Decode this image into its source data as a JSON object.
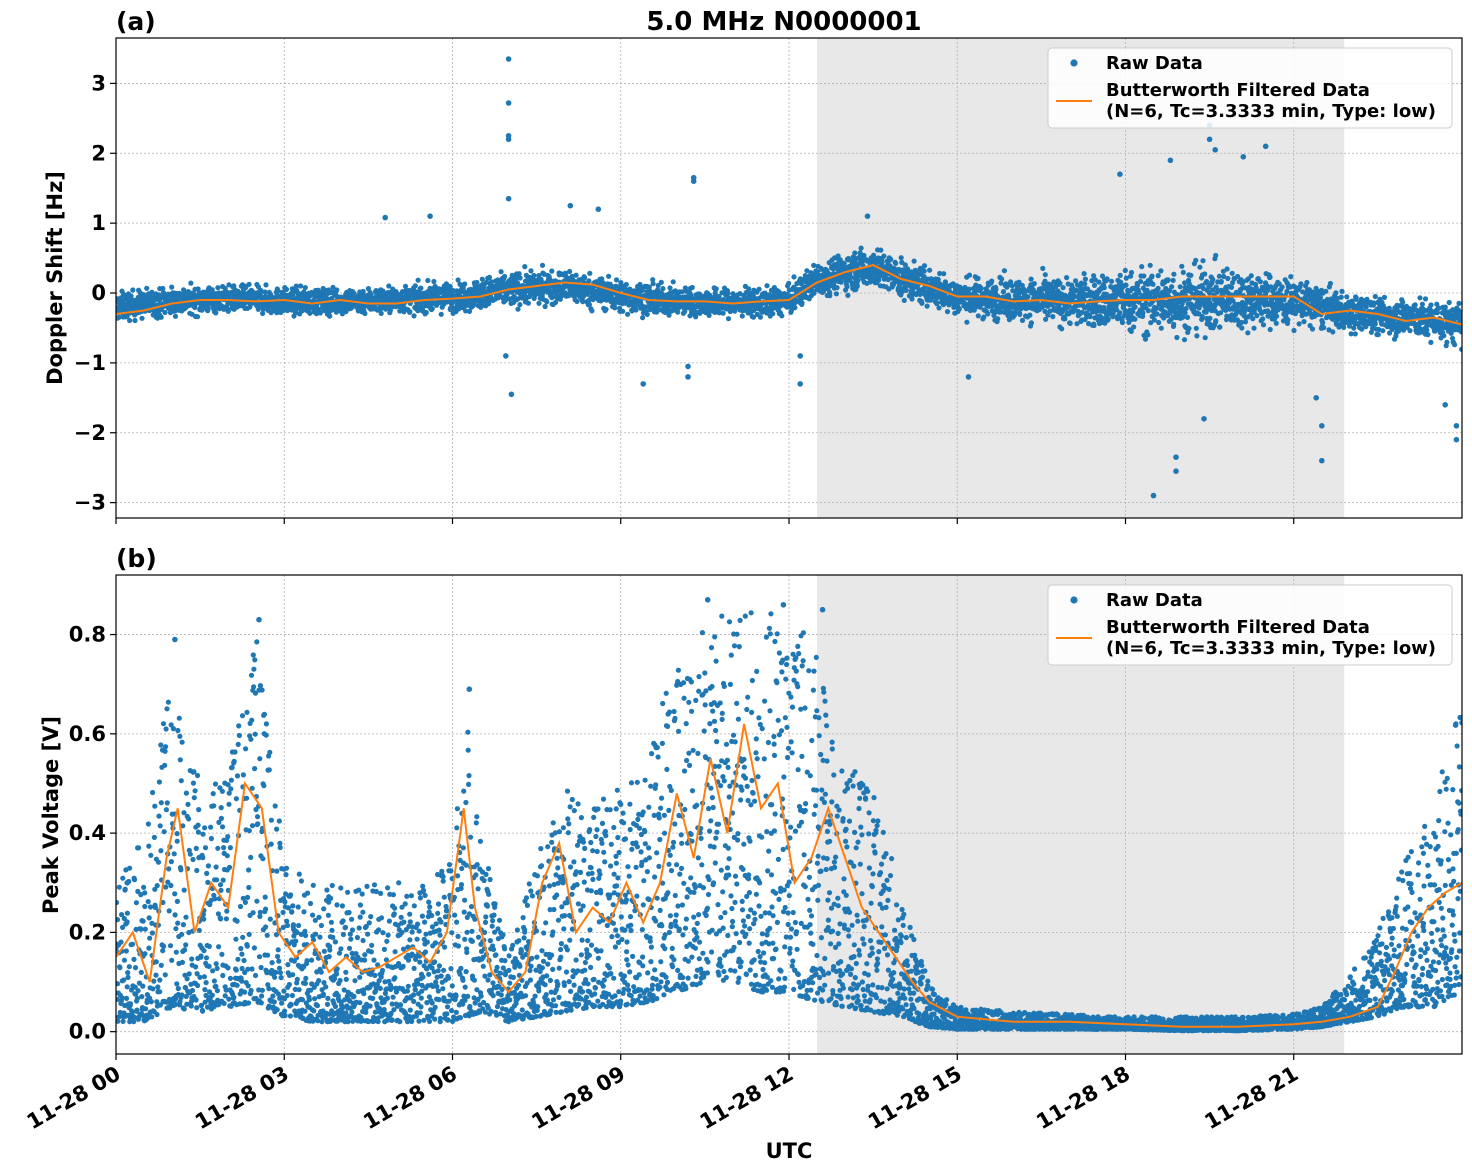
{
  "title": "5.0 MHz N0000001",
  "xlabel": "UTC",
  "x_tick_labels": [
    "11-28 00",
    "11-28 03",
    "11-28 06",
    "11-28 09",
    "11-28 12",
    "11-28 15",
    "11-28 18",
    "11-28 21"
  ],
  "legend": {
    "raw_label": "Raw Data",
    "filtered_label_line1": "Butterworth Filtered Data",
    "filtered_label_line2": "(N=6, Tc=3.3333 min, Type: low)"
  },
  "colors": {
    "raw": "#1f77b4",
    "filtered": "#ff7f0e",
    "shade": "#e8e8e8",
    "grid": "#b0b0b0"
  },
  "shaded_region_hours": [
    12.5,
    21.9
  ],
  "chart_data": [
    {
      "type": "scatter",
      "panel": "(a)",
      "ylabel": "Doppler Shift [Hz]",
      "xlim": [
        0,
        24
      ],
      "ylim": [
        -3.22,
        3.65
      ],
      "x_ticks": [
        0,
        3,
        6,
        9,
        12,
        15,
        18,
        21
      ],
      "y_ticks": [
        -3,
        -2,
        -1,
        0,
        1,
        2,
        3
      ],
      "y_tick_labels": [
        "−3",
        "−2",
        "−1",
        "0",
        "1",
        "2",
        "3"
      ],
      "grid": true,
      "legend_position": "top-right",
      "series": [
        {
          "name": "Raw Data",
          "style": "points",
          "band_x": [
            0,
            1,
            2,
            3,
            4,
            5,
            6,
            7,
            8,
            9,
            10,
            11,
            12,
            12.5,
            13,
            13.5,
            14,
            15,
            16,
            17,
            18,
            19,
            20,
            21,
            22,
            23,
            24
          ],
          "band_center": [
            -0.2,
            -0.12,
            -0.08,
            -0.12,
            -0.12,
            -0.1,
            -0.06,
            0.05,
            0.1,
            -0.05,
            -0.12,
            -0.15,
            -0.12,
            0.2,
            0.3,
            0.38,
            0.2,
            -0.05,
            -0.1,
            -0.12,
            -0.12,
            -0.1,
            -0.08,
            -0.12,
            -0.3,
            -0.35,
            -0.45
          ],
          "band_half_width": [
            0.3,
            0.3,
            0.28,
            0.28,
            0.28,
            0.28,
            0.3,
            0.35,
            0.35,
            0.35,
            0.3,
            0.3,
            0.3,
            0.35,
            0.4,
            0.42,
            0.4,
            0.4,
            0.45,
            0.5,
            0.65,
            0.75,
            0.65,
            0.5,
            0.4,
            0.4,
            0.45
          ],
          "outliers": [
            [
              7.0,
              3.35
            ],
            [
              7.0,
              2.72
            ],
            [
              7.0,
              2.25
            ],
            [
              7.0,
              2.2
            ],
            [
              7.0,
              1.35
            ],
            [
              7.05,
              -1.45
            ],
            [
              6.95,
              -0.9
            ],
            [
              8.1,
              1.25
            ],
            [
              8.6,
              1.2
            ],
            [
              9.4,
              -1.3
            ],
            [
              10.3,
              1.65
            ],
            [
              10.3,
              1.6
            ],
            [
              10.2,
              -1.2
            ],
            [
              10.2,
              -1.05
            ],
            [
              4.8,
              1.08
            ],
            [
              5.6,
              1.1
            ],
            [
              12.2,
              -1.3
            ],
            [
              12.2,
              -0.9
            ],
            [
              13.4,
              1.1
            ],
            [
              17.9,
              1.7
            ],
            [
              18.5,
              -2.9
            ],
            [
              18.9,
              -2.55
            ],
            [
              18.9,
              -2.35
            ],
            [
              19.4,
              -1.8
            ],
            [
              19.5,
              2.4
            ],
            [
              19.5,
              2.2
            ],
            [
              19.6,
              2.05
            ],
            [
              18.8,
              1.9
            ],
            [
              20.1,
              1.95
            ],
            [
              20.5,
              2.1
            ],
            [
              21.5,
              -2.4
            ],
            [
              21.5,
              -1.9
            ],
            [
              21.4,
              -1.5
            ],
            [
              23.7,
              -1.6
            ],
            [
              23.9,
              -2.1
            ],
            [
              23.9,
              -1.9
            ],
            [
              15.2,
              -1.2
            ]
          ]
        },
        {
          "name": "Butterworth Filtered Data (N=6, Tc=3.3333 min, Type: low)",
          "style": "line",
          "x": [
            0,
            0.5,
            1,
            1.5,
            2,
            2.5,
            3,
            3.5,
            4,
            4.5,
            5,
            5.5,
            6,
            6.5,
            7,
            7.5,
            8,
            8.5,
            9,
            9.5,
            10,
            10.5,
            11,
            11.5,
            12,
            12.5,
            13,
            13.5,
            14,
            14.5,
            15,
            15.5,
            16,
            16.5,
            17,
            17.5,
            18,
            18.5,
            19,
            19.5,
            20,
            20.5,
            21,
            21.5,
            22,
            22.5,
            23,
            23.5,
            24
          ],
          "y": [
            -0.3,
            -0.25,
            -0.15,
            -0.1,
            -0.1,
            -0.12,
            -0.1,
            -0.15,
            -0.1,
            -0.15,
            -0.15,
            -0.1,
            -0.08,
            -0.05,
            0.05,
            0.1,
            0.15,
            0.12,
            0.0,
            -0.1,
            -0.12,
            -0.12,
            -0.15,
            -0.12,
            -0.1,
            0.15,
            0.3,
            0.4,
            0.2,
            0.1,
            -0.05,
            -0.05,
            -0.12,
            -0.1,
            -0.15,
            -0.12,
            -0.1,
            -0.1,
            -0.05,
            -0.05,
            -0.05,
            -0.05,
            -0.05,
            -0.3,
            -0.25,
            -0.3,
            -0.4,
            -0.35,
            -0.45
          ]
        }
      ]
    },
    {
      "type": "scatter",
      "panel": "(b)",
      "ylabel": "Peak Voltage [V]",
      "xlim": [
        0,
        24
      ],
      "ylim": [
        -0.045,
        0.92
      ],
      "x_ticks": [
        0,
        3,
        6,
        9,
        12,
        15,
        18,
        21
      ],
      "y_ticks": [
        0.0,
        0.2,
        0.4,
        0.6,
        0.8
      ],
      "y_tick_labels": [
        "0.0",
        "0.2",
        "0.4",
        "0.6",
        "0.8"
      ],
      "grid": true,
      "legend_position": "top-right",
      "series": [
        {
          "name": "Raw Data",
          "style": "points",
          "band_x": [
            0,
            0.5,
            1,
            1.5,
            2,
            2.5,
            3,
            3.5,
            4,
            4.5,
            5,
            5.5,
            6,
            6.25,
            6.5,
            7,
            7.5,
            8,
            8.5,
            9,
            9.5,
            10,
            10.5,
            11,
            11.5,
            12,
            12.5,
            13,
            13.5,
            14,
            14.5,
            15,
            16,
            17,
            18,
            19,
            20,
            21,
            21.5,
            22,
            22.5,
            23,
            23.5,
            24
          ],
          "band_low": [
            0.02,
            0.02,
            0.05,
            0.04,
            0.05,
            0.06,
            0.03,
            0.02,
            0.02,
            0.02,
            0.02,
            0.02,
            0.02,
            0.03,
            0.04,
            0.02,
            0.03,
            0.04,
            0.05,
            0.05,
            0.06,
            0.08,
            0.1,
            0.1,
            0.08,
            0.08,
            0.06,
            0.05,
            0.04,
            0.03,
            0.01,
            0.005,
            0.005,
            0.005,
            0.005,
            0.002,
            0.002,
            0.005,
            0.01,
            0.02,
            0.03,
            0.05,
            0.05,
            0.08
          ],
          "band_high": [
            0.3,
            0.4,
            0.75,
            0.5,
            0.55,
            0.8,
            0.35,
            0.3,
            0.3,
            0.3,
            0.3,
            0.3,
            0.35,
            0.65,
            0.4,
            0.15,
            0.35,
            0.5,
            0.45,
            0.5,
            0.55,
            0.8,
            0.86,
            0.86,
            0.85,
            0.85,
            0.78,
            0.55,
            0.5,
            0.28,
            0.1,
            0.05,
            0.04,
            0.035,
            0.03,
            0.03,
            0.03,
            0.035,
            0.05,
            0.12,
            0.2,
            0.35,
            0.45,
            0.7
          ],
          "outliers": [
            [
              2.55,
              0.83
            ],
            [
              1.05,
              0.79
            ],
            [
              6.3,
              0.69
            ],
            [
              10.55,
              0.87
            ],
            [
              11.9,
              0.86
            ],
            [
              12.6,
              0.85
            ],
            [
              0.2,
              0.3
            ]
          ]
        },
        {
          "name": "Butterworth Filtered Data (N=6, Tc=3.3333 min, Type: low)",
          "style": "line",
          "x": [
            0,
            0.3,
            0.6,
            0.9,
            1.1,
            1.4,
            1.7,
            2.0,
            2.3,
            2.6,
            2.9,
            3.2,
            3.5,
            3.8,
            4.1,
            4.4,
            4.7,
            5.0,
            5.3,
            5.6,
            5.9,
            6.2,
            6.4,
            6.7,
            7.0,
            7.3,
            7.6,
            7.9,
            8.2,
            8.5,
            8.8,
            9.1,
            9.4,
            9.7,
            10.0,
            10.3,
            10.6,
            10.9,
            11.2,
            11.5,
            11.8,
            12.1,
            12.4,
            12.7,
            13.0,
            13.3,
            13.6,
            13.9,
            14.2,
            14.5,
            15.0,
            16.0,
            17.0,
            18.0,
            19.0,
            20.0,
            21.0,
            21.5,
            22.0,
            22.5,
            22.8,
            23.1,
            23.4,
            23.7,
            24.0
          ],
          "y": [
            0.15,
            0.2,
            0.1,
            0.35,
            0.45,
            0.2,
            0.3,
            0.25,
            0.5,
            0.45,
            0.2,
            0.15,
            0.18,
            0.12,
            0.15,
            0.12,
            0.13,
            0.15,
            0.17,
            0.14,
            0.2,
            0.45,
            0.25,
            0.12,
            0.08,
            0.12,
            0.3,
            0.38,
            0.2,
            0.25,
            0.22,
            0.3,
            0.22,
            0.3,
            0.48,
            0.35,
            0.55,
            0.4,
            0.62,
            0.45,
            0.5,
            0.3,
            0.35,
            0.45,
            0.35,
            0.25,
            0.2,
            0.15,
            0.1,
            0.06,
            0.03,
            0.02,
            0.02,
            0.015,
            0.01,
            0.01,
            0.015,
            0.02,
            0.03,
            0.05,
            0.12,
            0.2,
            0.25,
            0.28,
            0.3
          ]
        }
      ]
    }
  ]
}
